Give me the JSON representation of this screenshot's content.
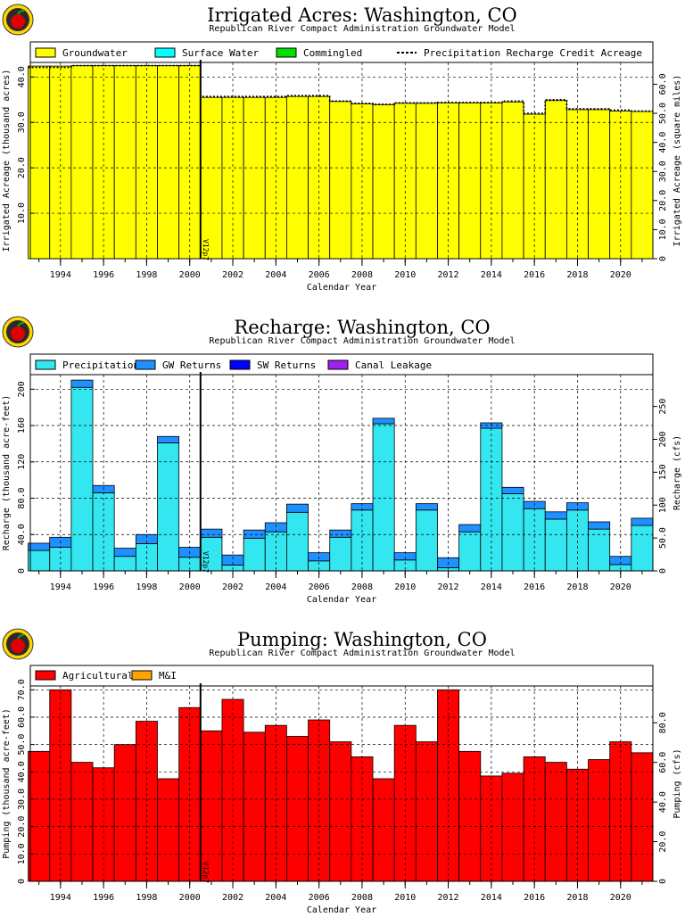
{
  "logo_label": "apple-logo",
  "colors": {
    "groundwater": "#ffff00",
    "surface_water": "#00ffff",
    "commingled": "#00e000",
    "precip_recharge": "#33e6ef",
    "gw_returns": "#1e90ff",
    "sw_returns": "#0000ff",
    "canal_leakage": "#a020f0",
    "agricultural": "#ff0000",
    "mi": "#ffa500",
    "marker": "#000000"
  },
  "chart_data": [
    {
      "type": "bar",
      "title": "Irrigated Acres: Washington, CO",
      "subtitle": "Republican River Compact Administration Groundwater Model",
      "xlabel": "Calendar Year",
      "ylabel": "Irrigated Acreage (thousand acres)",
      "y2label": "Irrigated Acreage (square miles)",
      "xlim": [
        1992.6,
        2021.5
      ],
      "ylim": [
        0,
        43.2
      ],
      "y2lim": [
        0,
        67.5
      ],
      "yticks": [
        "10.0",
        "20.0",
        "30.0",
        "40.0"
      ],
      "y2ticks": [
        "0",
        "10.0",
        "20.0",
        "30.0",
        "40.0",
        "50.0",
        "60.0"
      ],
      "xticks": [
        "1994",
        "1996",
        "1998",
        "2000",
        "2002",
        "2004",
        "2006",
        "2008",
        "2010",
        "2012",
        "2014",
        "2016",
        "2018",
        "2020"
      ],
      "marker_label": "V12p7",
      "marker_x": 2000.5,
      "legend_placement": "top",
      "grid": true,
      "categories": [
        1993,
        1994,
        1995,
        1996,
        1997,
        1998,
        1999,
        2000,
        2001,
        2002,
        2003,
        2004,
        2005,
        2006,
        2007,
        2008,
        2009,
        2010,
        2011,
        2012,
        2013,
        2014,
        2015,
        2016,
        2017,
        2018,
        2019,
        2020,
        2021
      ],
      "series": [
        {
          "name": "Groundwater",
          "values": [
            42.4,
            42.4,
            42.5,
            42.5,
            42.5,
            42.5,
            42.5,
            42.5,
            35.5,
            35.5,
            35.5,
            35.5,
            35.7,
            35.7,
            34.6,
            34.1,
            33.9,
            34.2,
            34.2,
            34.3,
            34.3,
            34.3,
            34.5,
            31.8,
            34.8,
            32.8,
            32.8,
            32.5,
            32.4
          ]
        },
        {
          "name": "Surface Water",
          "values": [
            0,
            0,
            0,
            0,
            0,
            0,
            0,
            0,
            0,
            0,
            0,
            0,
            0,
            0,
            0,
            0,
            0,
            0,
            0,
            0,
            0,
            0,
            0,
            0,
            0,
            0,
            0,
            0,
            0
          ]
        },
        {
          "name": "Commingled",
          "values": [
            0,
            0,
            0,
            0,
            0,
            0,
            0,
            0,
            0,
            0,
            0,
            0,
            0,
            0,
            0,
            0,
            0,
            0,
            0,
            0,
            0,
            0,
            0,
            0,
            0,
            0,
            0,
            0,
            0
          ]
        },
        {
          "name": "Precipitation Recharge Credit Acreage",
          "values": [
            42.1,
            42.1,
            42.5,
            42.5,
            42.5,
            42.5,
            42.5,
            42.5,
            35.7,
            35.7,
            35.7,
            35.7,
            35.9,
            35.9,
            34.7,
            34.2,
            34.0,
            34.3,
            34.3,
            34.4,
            34.4,
            34.4,
            34.7,
            32.0,
            35.0,
            33.0,
            33.0,
            32.7,
            32.5
          ]
        }
      ]
    },
    {
      "type": "bar",
      "title": "Recharge: Washington, CO",
      "subtitle": "Republican River Compact Administration Groundwater Model",
      "xlabel": "Calendar Year",
      "ylabel": "Recharge (thousand acre-feet)",
      "y2label": "Recharge (cfs)",
      "xlim": [
        1992.6,
        2021.5
      ],
      "ylim": [
        0,
        216
      ],
      "y2lim": [
        0,
        298.3
      ],
      "yticks": [
        "0",
        "40.0",
        "80.0",
        "120",
        "160",
        "200"
      ],
      "y2ticks": [
        "0",
        "50.0",
        "100",
        "150",
        "200",
        "250"
      ],
      "xticks": [
        "1994",
        "1996",
        "1998",
        "2000",
        "2002",
        "2004",
        "2006",
        "2008",
        "2010",
        "2012",
        "2014",
        "2016",
        "2018",
        "2020"
      ],
      "marker_label": "V12p7",
      "marker_x": 2000.5,
      "legend_placement": "top",
      "grid": true,
      "categories": [
        1993,
        1994,
        1995,
        1996,
        1997,
        1998,
        1999,
        2000,
        2001,
        2002,
        2003,
        2004,
        2005,
        2006,
        2007,
        2008,
        2009,
        2010,
        2011,
        2012,
        2013,
        2014,
        2015,
        2016,
        2017,
        2018,
        2019,
        2020,
        2021
      ],
      "series": [
        {
          "name": "Precipitation",
          "values": [
            22.5,
            26,
            202,
            86,
            16,
            30,
            141,
            15,
            37,
            6.5,
            36,
            43,
            64.5,
            11,
            37,
            67,
            162,
            12,
            67,
            3.5,
            43,
            157,
            85,
            68.5,
            57,
            67,
            46,
            7,
            50
          ]
        },
        {
          "name": "GW Returns",
          "values": [
            8,
            11,
            8,
            8,
            9,
            10,
            7,
            11,
            9,
            11,
            9,
            10,
            9,
            9,
            8,
            7,
            6,
            8,
            7,
            11,
            8,
            6,
            7,
            8,
            8,
            8,
            8,
            9,
            8
          ]
        },
        {
          "name": "SW Returns",
          "values": [
            0,
            0,
            0,
            0,
            0,
            0,
            0,
            0,
            0,
            0,
            0,
            0,
            0,
            0,
            0,
            0,
            0,
            0,
            0,
            0,
            0,
            0,
            0,
            0,
            0,
            0,
            0,
            0,
            0
          ]
        },
        {
          "name": "Canal Leakage",
          "values": [
            0,
            0,
            0,
            0,
            0,
            0,
            0,
            0,
            0,
            0,
            0,
            0,
            0,
            0,
            0,
            0,
            0,
            0,
            0,
            0,
            0,
            0,
            0,
            0,
            0,
            0,
            0,
            0,
            0
          ]
        }
      ]
    },
    {
      "type": "bar",
      "title": "Pumping: Washington, CO",
      "subtitle": "Republican River Compact Administration Groundwater Model",
      "xlabel": "Calendar Year",
      "ylabel": "Pumping (thousand acre-feet)",
      "y2label": "Pumping (cfs)",
      "xlim": [
        1992.6,
        2021.5
      ],
      "ylim": [
        0,
        71.4
      ],
      "y2lim": [
        0,
        98.6
      ],
      "yticks": [
        "0",
        "10.0",
        "20.0",
        "30.0",
        "40.0",
        "50.0",
        "60.0",
        "70.0"
      ],
      "y2ticks": [
        "0",
        "20.0",
        "40.0",
        "60.0",
        "80.0"
      ],
      "xticks": [
        "1994",
        "1996",
        "1998",
        "2000",
        "2002",
        "2004",
        "2006",
        "2008",
        "2010",
        "2012",
        "2014",
        "2016",
        "2018",
        "2020"
      ],
      "marker_label": "V12p7",
      "marker_x": 2000.5,
      "legend_placement": "top",
      "grid": true,
      "categories": [
        1993,
        1994,
        1995,
        1996,
        1997,
        1998,
        1999,
        2000,
        2001,
        2002,
        2003,
        2004,
        2005,
        2006,
        2007,
        2008,
        2009,
        2010,
        2011,
        2012,
        2013,
        2014,
        2015,
        2016,
        2017,
        2018,
        2019,
        2020,
        2021
      ],
      "series": [
        {
          "name": "Agricultural",
          "values": [
            47.5,
            70,
            43.5,
            41.5,
            50,
            58.5,
            37.5,
            63.5,
            55,
            66.5,
            54.5,
            57,
            53,
            59,
            51,
            45.5,
            37.5,
            57,
            51,
            70,
            47.5,
            38.5,
            39.5,
            45.5,
            43.5,
            41,
            44.5,
            51,
            47
          ]
        },
        {
          "name": "M&I",
          "values": [
            0,
            0,
            0,
            0,
            0,
            0,
            0,
            0,
            0,
            0,
            0,
            0,
            0,
            0,
            0,
            0,
            0,
            0,
            0,
            0,
            0,
            0,
            0,
            0,
            0,
            0,
            0,
            0,
            0
          ]
        }
      ]
    }
  ]
}
